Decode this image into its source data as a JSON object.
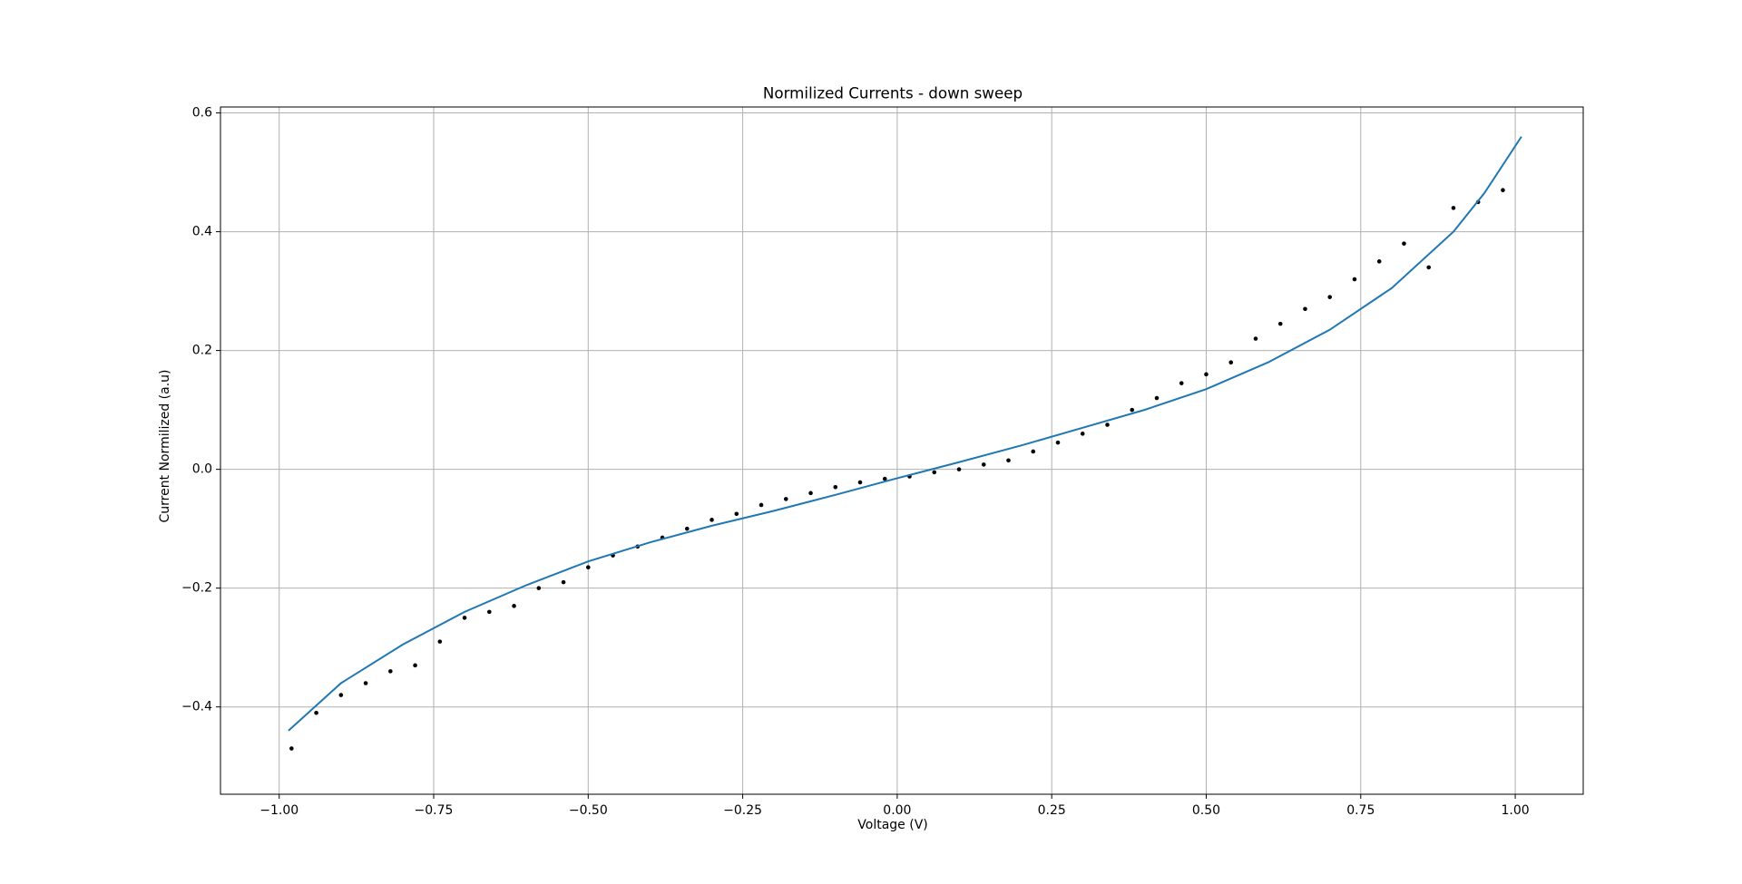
{
  "chart_data": {
    "type": "scatter",
    "title": "Normilized Currents - down sweep",
    "xlabel": "Voltage (V)",
    "ylabel": "Current Normilized (a.u)",
    "xlim": [
      -1.095,
      1.11
    ],
    "ylim": [
      -0.547,
      0.61
    ],
    "xticks": [
      {
        "value": -1,
        "label": "−1.00"
      },
      {
        "value": -0.75,
        "label": "−0.75"
      },
      {
        "value": -0.5,
        "label": "−0.50"
      },
      {
        "value": -0.25,
        "label": "−0.25"
      },
      {
        "value": 0,
        "label": "0.00"
      },
      {
        "value": 0.25,
        "label": "0.25"
      },
      {
        "value": 0.5,
        "label": "0.50"
      },
      {
        "value": 0.75,
        "label": "0.75"
      },
      {
        "value": 1,
        "label": "1.00"
      }
    ],
    "yticks": [
      {
        "value": -0.4,
        "label": "−0.4"
      },
      {
        "value": -0.2,
        "label": "−0.2"
      },
      {
        "value": 0,
        "label": "0.0"
      },
      0.2,
      0.4,
      0.6
    ],
    "grid": true,
    "series": [
      {
        "type": "scatter",
        "color": "#000000",
        "x": [
          -0.98,
          -0.94,
          -0.9,
          -0.86,
          -0.82,
          -0.78,
          -0.74,
          -0.7,
          -0.66,
          -0.62,
          -0.58,
          -0.54,
          -0.5,
          -0.46,
          -0.42,
          -0.38,
          -0.34,
          -0.3,
          -0.26,
          -0.22,
          -0.18,
          -0.14,
          -0.1,
          -0.06,
          -0.02,
          0.02,
          0.06,
          0.1,
          0.14,
          0.18,
          0.22,
          0.26,
          0.3,
          0.34,
          0.38,
          0.42,
          0.46,
          0.5,
          0.54,
          0.58,
          0.62,
          0.66,
          0.7,
          0.74,
          0.78,
          0.82,
          0.86,
          0.9,
          0.94,
          0.98
        ],
        "values": [
          -0.47,
          -0.41,
          -0.38,
          -0.36,
          -0.34,
          -0.33,
          -0.29,
          -0.25,
          -0.24,
          -0.23,
          -0.2,
          -0.19,
          -0.165,
          -0.145,
          -0.13,
          -0.115,
          -0.1,
          -0.085,
          -0.075,
          -0.06,
          -0.05,
          -0.04,
          -0.03,
          -0.022,
          -0.016,
          -0.012,
          -0.005,
          0.0,
          0.008,
          0.015,
          0.03,
          0.045,
          0.06,
          0.075,
          0.1,
          0.12,
          0.145,
          0.16,
          0.18,
          0.22,
          0.245,
          0.27,
          0.29,
          0.32,
          0.35,
          0.38,
          0.34,
          0.44,
          0.45,
          0.47
        ]
      },
      {
        "type": "line",
        "color": "#1f77b4",
        "x": [
          -0.985,
          -0.9,
          -0.8,
          -0.7,
          -0.6,
          -0.5,
          -0.4,
          -0.3,
          -0.2,
          -0.1,
          0,
          0.1,
          0.2,
          0.3,
          0.4,
          0.5,
          0.6,
          0.7,
          0.8,
          0.9,
          0.95,
          1.01
        ],
        "values": [
          -0.44,
          -0.36,
          -0.295,
          -0.24,
          -0.195,
          -0.155,
          -0.123,
          -0.095,
          -0.07,
          -0.043,
          -0.015,
          0.012,
          0.04,
          0.07,
          0.1,
          0.135,
          0.18,
          0.235,
          0.305,
          0.4,
          0.465,
          0.56
        ]
      }
    ]
  }
}
